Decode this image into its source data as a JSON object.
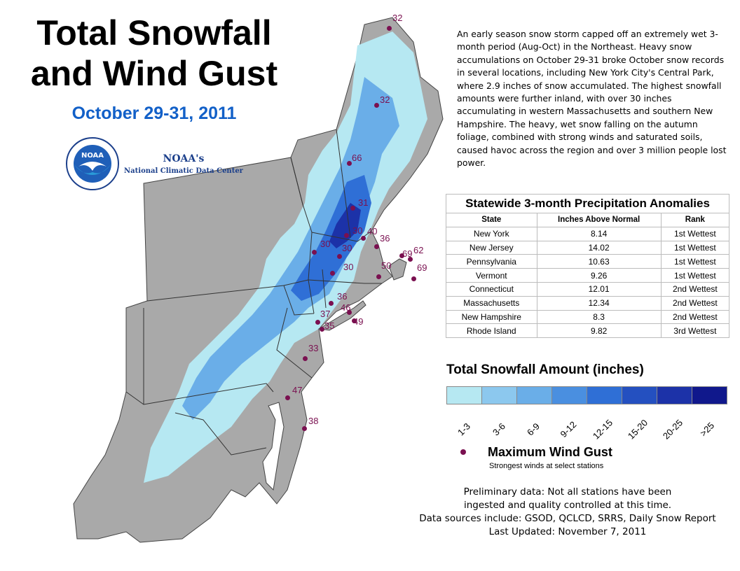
{
  "title_line1": "Total Snowfall",
  "title_line2": "and Wind Gust",
  "subtitle": "October 29-31, 2011",
  "logo": {
    "text": "NOAA",
    "icon": "noaa-logo-icon"
  },
  "agency_line1": "NOAA's",
  "agency_line2": "National Climatic Data Center",
  "description": "An early season snow storm capped off an extremely wet 3-month period (Aug-Oct) in the Northeast. Heavy snow accumulations on October 29-31 broke October snow records in several locations,  including New York City's Central Park, where 2.9 inches of snow accumulated.  The highest snowfall amounts were further inland, with over 30 inches accumulating in western Massachusetts and southern New Hampshire.  The heavy, wet snow falling on the autumn foliage, combined with strong winds and saturated soils, caused havoc across the region and over 3 million people lost power.",
  "precip_table": {
    "title": "Statewide 3-month Precipitation Anomalies",
    "headers": [
      "State",
      "Inches Above Normal",
      "Rank"
    ],
    "rows": [
      [
        "New York",
        "8.14",
        "1st Wettest"
      ],
      [
        "New Jersey",
        "14.02",
        "1st Wettest"
      ],
      [
        "Pennsylvania",
        "10.63",
        "1st Wettest"
      ],
      [
        "Vermont",
        "9.26",
        "1st Wettest"
      ],
      [
        "Connecticut",
        "12.01",
        "2nd Wettest"
      ],
      [
        "Massachusetts",
        "12.34",
        "2nd Wettest"
      ],
      [
        "New Hampshire",
        "8.3",
        "2nd Wettest"
      ],
      [
        "Rhode Island",
        "9.82",
        "3rd Wettest"
      ]
    ]
  },
  "legend": {
    "title": "Total Snowfall Amount (inches)",
    "classes": [
      {
        "label": "1-3",
        "color": "#b6e8f2"
      },
      {
        "label": "3-6",
        "color": "#8cc8ee"
      },
      {
        "label": "6-9",
        "color": "#6aaee8"
      },
      {
        "label": "9-12",
        "color": "#4a8fe0"
      },
      {
        "label": "12-15",
        "color": "#2f6fd6"
      },
      {
        "label": "15-20",
        "color": "#2450c0"
      },
      {
        "label": "20-25",
        "color": "#1c32a8"
      },
      {
        "label": ">25",
        "color": "#10188c"
      }
    ]
  },
  "gust_legend": {
    "title": "Maximum Wind Gust",
    "subtitle": "Strongest winds at select stations",
    "color": "#7a1050"
  },
  "wind_gusts": [
    "32",
    "32",
    "66",
    "31",
    "30",
    "40",
    "36",
    "30",
    "30",
    "30",
    "50",
    "62",
    "69",
    "69",
    "36",
    "37",
    "46",
    "49",
    "35",
    "33",
    "47",
    "38"
  ],
  "footnote": [
    "Preliminary data: Not all stations have been",
    "ingested and quality controlled at this time.",
    "Data sources include: GSOD, QCLCD, SRRS, Daily Snow Report",
    "Last Updated: November 7, 2011"
  ]
}
